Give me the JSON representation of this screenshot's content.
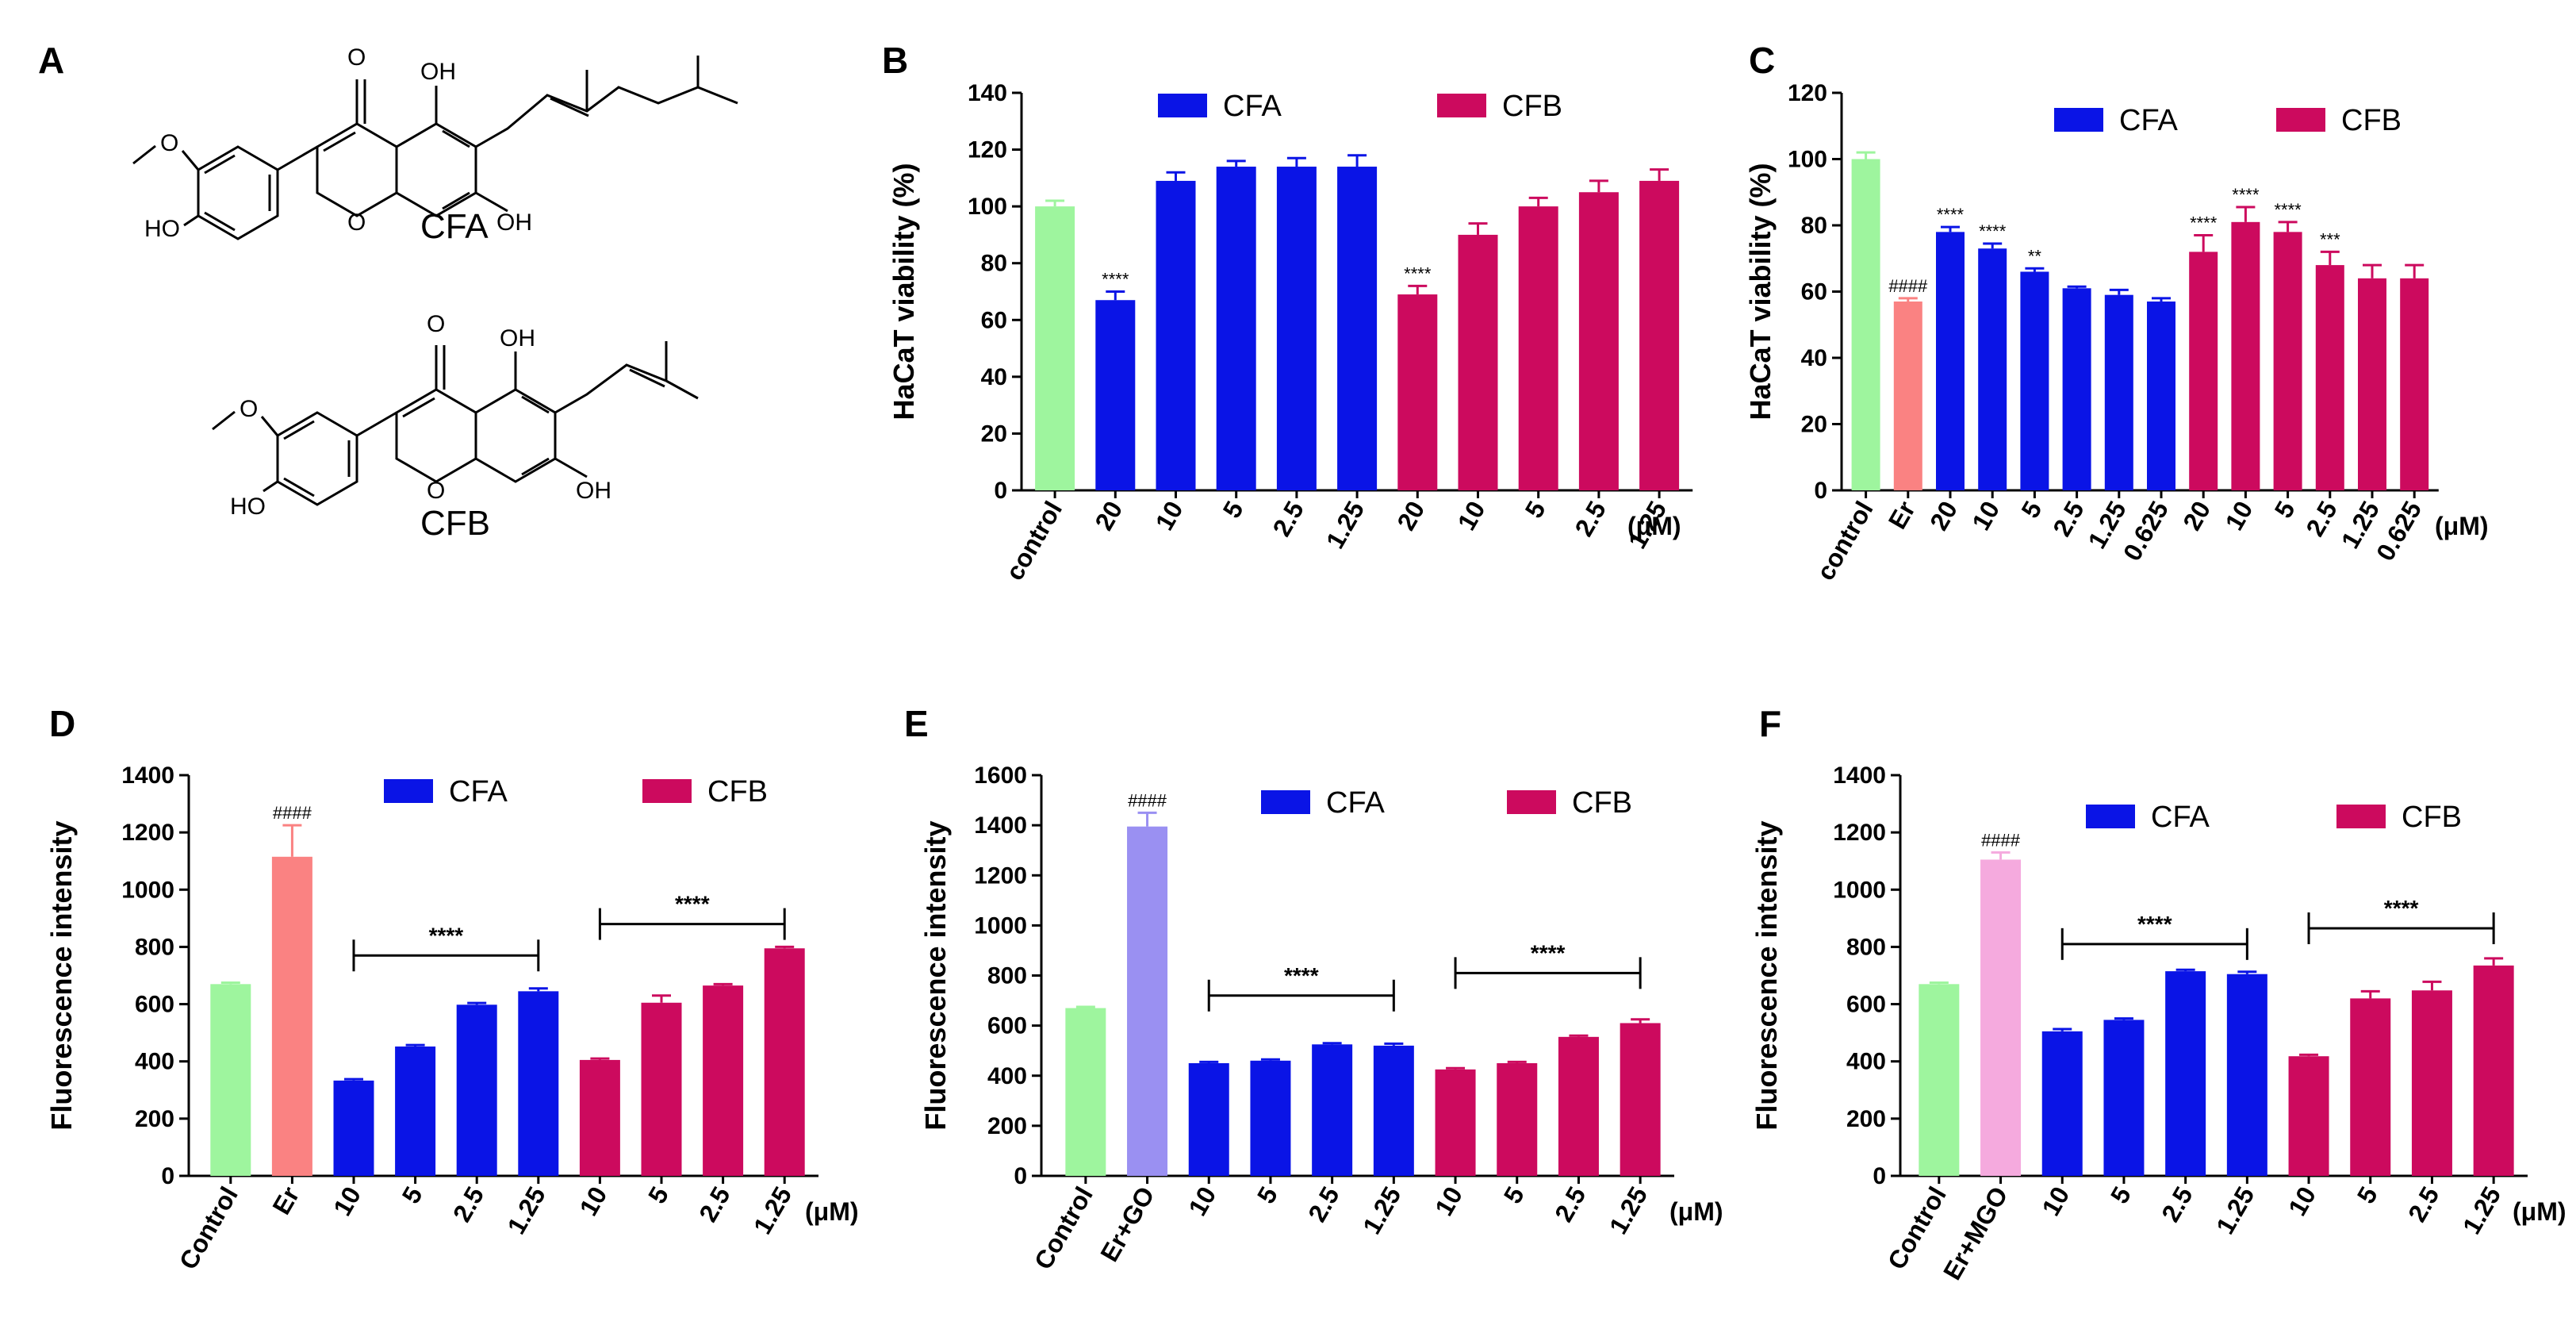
{
  "colors": {
    "cfa": "#0a14e6",
    "cfb": "#cc0a5e",
    "control": "#9ef59e",
    "er": "#fa8282",
    "er_go": "#9a90f2",
    "er_mgo": "#f5aade"
  },
  "panel_labels": {
    "A": "A",
    "B": "B",
    "C": "C",
    "D": "D",
    "E": "E",
    "F": "F"
  },
  "structures": {
    "cfa": {
      "name": "CFA",
      "atoms": [
        "O",
        "OH",
        "OH",
        "O",
        "O",
        "HO"
      ]
    },
    "cfb": {
      "name": "CFB",
      "atoms": [
        "O",
        "OH",
        "OH",
        "O",
        "O",
        "HO"
      ]
    }
  },
  "chart_data": [
    {
      "id": "B",
      "type": "bar",
      "ylabel": "HaCaT viability (%)",
      "ylim": [
        0,
        140
      ],
      "yticks": [
        0,
        20,
        40,
        60,
        80,
        100,
        120,
        140
      ],
      "unit": "(μM)",
      "legend": [
        "CFA",
        "CFB"
      ],
      "categories": [
        "control",
        "20",
        "10",
        "5",
        "2.5",
        "1.25",
        "20",
        "10",
        "5",
        "2.5",
        "1.25"
      ],
      "groups": [
        "control",
        "cfa",
        "cfa",
        "cfa",
        "cfa",
        "cfa",
        "cfb",
        "cfb",
        "cfb",
        "cfb",
        "cfb"
      ],
      "values": [
        100,
        67,
        109,
        114,
        114,
        114,
        69,
        90,
        100,
        105,
        109
      ],
      "errors": [
        2,
        3,
        3,
        2,
        3,
        4,
        3,
        4,
        3,
        4,
        4
      ],
      "marks": [
        "",
        "****",
        "",
        "",
        "",
        "",
        "****",
        "",
        "",
        "",
        ""
      ]
    },
    {
      "id": "C",
      "type": "bar",
      "ylabel": "HaCaT viability (%)",
      "ylim": [
        0,
        120
      ],
      "yticks": [
        0,
        20,
        40,
        60,
        80,
        100,
        120
      ],
      "unit": "(μM)",
      "legend": [
        "CFA",
        "CFB"
      ],
      "categories": [
        "control",
        "Er",
        "20",
        "10",
        "5",
        "2.5",
        "1.25",
        "0.625",
        "20",
        "10",
        "5",
        "2.5",
        "1.25",
        "0.625"
      ],
      "groups": [
        "control",
        "er",
        "cfa",
        "cfa",
        "cfa",
        "cfa",
        "cfa",
        "cfa",
        "cfb",
        "cfb",
        "cfb",
        "cfb",
        "cfb",
        "cfb"
      ],
      "values": [
        100,
        57,
        78,
        73,
        66,
        61,
        59,
        57,
        72,
        81,
        78,
        68,
        64,
        64
      ],
      "errors": [
        2,
        1,
        1.5,
        1.5,
        1,
        0.5,
        1.5,
        1,
        5,
        4.5,
        3,
        4,
        4,
        4
      ],
      "marks": [
        "",
        "####",
        "****",
        "****",
        "**",
        "",
        "",
        "",
        "****",
        "****",
        "****",
        "***",
        "",
        ""
      ]
    },
    {
      "id": "D",
      "type": "bar",
      "ylabel": "Fluorescence intensity",
      "ylim": [
        0,
        1400
      ],
      "yticks": [
        0,
        200,
        400,
        600,
        800,
        1000,
        1200,
        1400
      ],
      "unit": "(μM)",
      "legend": [
        "CFA",
        "CFB"
      ],
      "categories": [
        "Control",
        "Er",
        "10",
        "5",
        "2.5",
        "1.25",
        "10",
        "5",
        "2.5",
        "1.25"
      ],
      "groups": [
        "control",
        "er",
        "cfa",
        "cfa",
        "cfa",
        "cfa",
        "cfb",
        "cfb",
        "cfb",
        "cfb"
      ],
      "values": [
        670,
        1115,
        333,
        452,
        598,
        645,
        405,
        605,
        665,
        795
      ],
      "errors": [
        5,
        110,
        5,
        5,
        6,
        10,
        5,
        25,
        5,
        5
      ],
      "marks": [
        "",
        "####",
        "",
        "",
        "",
        "",
        "",
        "",
        "",
        ""
      ],
      "brackets": [
        {
          "from": 2,
          "to": 5,
          "y": 770,
          "label": "****"
        },
        {
          "from": 6,
          "to": 9,
          "y": 880,
          "label": "****"
        }
      ]
    },
    {
      "id": "E",
      "type": "bar",
      "ylabel": "Fluorescence intensity",
      "ylim": [
        0,
        1600
      ],
      "yticks": [
        0,
        200,
        400,
        600,
        800,
        1000,
        1200,
        1400,
        1600
      ],
      "unit": "(μM)",
      "legend": [
        "CFA",
        "CFB"
      ],
      "categories": [
        "Control",
        "Er+GO",
        "10",
        "5",
        "2.5",
        "1.25",
        "10",
        "5",
        "2.5",
        "1.25"
      ],
      "groups": [
        "control",
        "er_go",
        "cfa",
        "cfa",
        "cfa",
        "cfa",
        "cfb",
        "cfb",
        "cfb",
        "cfb"
      ],
      "values": [
        670,
        1395,
        450,
        460,
        525,
        520,
        425,
        450,
        555,
        610
      ],
      "errors": [
        5,
        55,
        5,
        5,
        5,
        8,
        5,
        5,
        5,
        15
      ],
      "marks": [
        "",
        "####",
        "",
        "",
        "",
        "",
        "",
        "",
        "",
        ""
      ],
      "brackets": [
        {
          "from": 2,
          "to": 5,
          "y": 720,
          "label": "****"
        },
        {
          "from": 6,
          "to": 9,
          "y": 810,
          "label": "****"
        }
      ]
    },
    {
      "id": "F",
      "type": "bar",
      "ylabel": "Fluorescence intensity",
      "ylim": [
        0,
        1400
      ],
      "yticks": [
        0,
        200,
        400,
        600,
        800,
        1000,
        1200,
        1400
      ],
      "unit": "(μM)",
      "legend": [
        "CFA",
        "CFB"
      ],
      "categories": [
        "Control",
        "Er+MGO",
        "10",
        "5",
        "2.5",
        "1.25",
        "10",
        "5",
        "2.5",
        "1.25"
      ],
      "groups": [
        "control",
        "er_mgo",
        "cfa",
        "cfa",
        "cfa",
        "cfa",
        "cfb",
        "cfb",
        "cfb",
        "cfb"
      ],
      "values": [
        670,
        1105,
        505,
        545,
        715,
        705,
        418,
        620,
        648,
        735
      ],
      "errors": [
        5,
        25,
        8,
        5,
        5,
        8,
        5,
        25,
        30,
        25
      ],
      "marks": [
        "",
        "####",
        "",
        "",
        "",
        "",
        "",
        "",
        "",
        ""
      ],
      "brackets": [
        {
          "from": 2,
          "to": 5,
          "y": 810,
          "label": "****"
        },
        {
          "from": 6,
          "to": 9,
          "y": 865,
          "label": "****"
        }
      ]
    }
  ]
}
